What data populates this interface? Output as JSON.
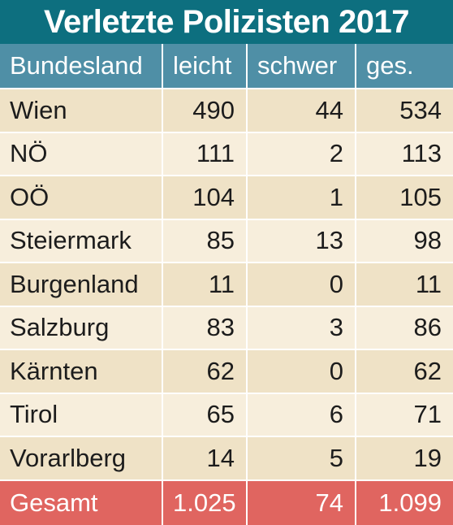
{
  "title": "Verletzte Polizisten 2017",
  "colors": {
    "title_bg": "#0d6f7f",
    "header_bg": "#4f8fa6",
    "row_odd_bg": "#efe2c6",
    "row_even_bg": "#f7eedc",
    "total_bg": "#e06560"
  },
  "chart_data": {
    "type": "table",
    "title": "Verletzte Polizisten 2017",
    "columns": [
      "Bundesland",
      "leicht",
      "schwer",
      "ges."
    ],
    "rows": [
      [
        "Wien",
        "490",
        "44",
        "534"
      ],
      [
        "NÖ",
        "111",
        "2",
        "113"
      ],
      [
        "OÖ",
        "104",
        "1",
        "105"
      ],
      [
        "Steiermark",
        "85",
        "13",
        "98"
      ],
      [
        "Burgenland",
        "11",
        "0",
        "11"
      ],
      [
        "Salzburg",
        "83",
        "3",
        "86"
      ],
      [
        "Kärnten",
        "62",
        "0",
        "62"
      ],
      [
        "Tirol",
        "65",
        "6",
        "71"
      ],
      [
        "Vorarlberg",
        "14",
        "5",
        "19"
      ]
    ],
    "total": [
      "Gesamt",
      "1.025",
      "74",
      "1.099"
    ]
  }
}
